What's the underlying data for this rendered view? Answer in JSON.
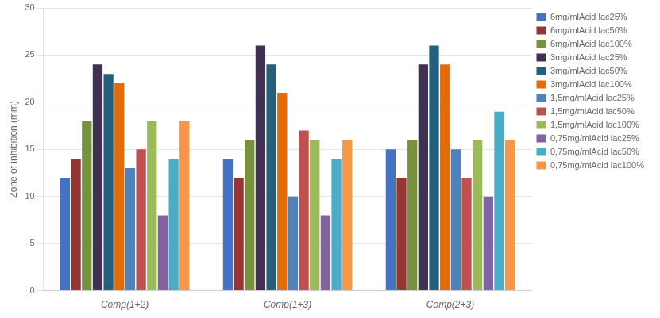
{
  "chart_data": {
    "type": "bar",
    "categories": [
      "Comp(1+2)",
      "Comp(1+3)",
      "Comp(2+3)"
    ],
    "series": [
      {
        "name": "6mg/mlAcid lac25%",
        "color": "#4472C4",
        "values": [
          12,
          14,
          15
        ]
      },
      {
        "name": "6mg/mlAcid lac50%",
        "color": "#963634",
        "values": [
          14,
          12,
          12
        ]
      },
      {
        "name": "6mg/mlAcid lac100%",
        "color": "#76923C",
        "values": [
          18,
          16,
          16
        ]
      },
      {
        "name": "3mg/mlAcid lac25%",
        "color": "#403152",
        "values": [
          24,
          26,
          24
        ]
      },
      {
        "name": "3mg/mlAcid lac50%",
        "color": "#245F7C",
        "values": [
          23,
          24,
          26
        ]
      },
      {
        "name": "3mg/mlAcid lac100%",
        "color": "#E36C09",
        "values": [
          22,
          21,
          24
        ]
      },
      {
        "name": "1,5mg/mlAcid lac25%",
        "color": "#4F81BD",
        "values": [
          13,
          10,
          15
        ]
      },
      {
        "name": "1,5mg/mlAcid lac50%",
        "color": "#C0504D",
        "values": [
          15,
          17,
          12
        ]
      },
      {
        "name": "1,5mg/mlAcid lac100%",
        "color": "#9BBB59",
        "values": [
          18,
          16,
          16
        ]
      },
      {
        "name": "0,75mg/mlAcid lac25%",
        "color": "#8064A2",
        "values": [
          8,
          8,
          10
        ]
      },
      {
        "name": "0,75mg/mlAcid lac50%",
        "color": "#4BACC6",
        "values": [
          14,
          14,
          19
        ]
      },
      {
        "name": "0,75mg/mlAcid lac100%",
        "color": "#F79646",
        "values": [
          18,
          16,
          16
        ]
      }
    ],
    "ylabel": "Zone of inhibition (mm)",
    "ylim": [
      0,
      30
    ],
    "yticks": [
      0,
      5,
      10,
      15,
      20,
      25,
      30
    ],
    "grid": true,
    "legend": "upper right"
  }
}
